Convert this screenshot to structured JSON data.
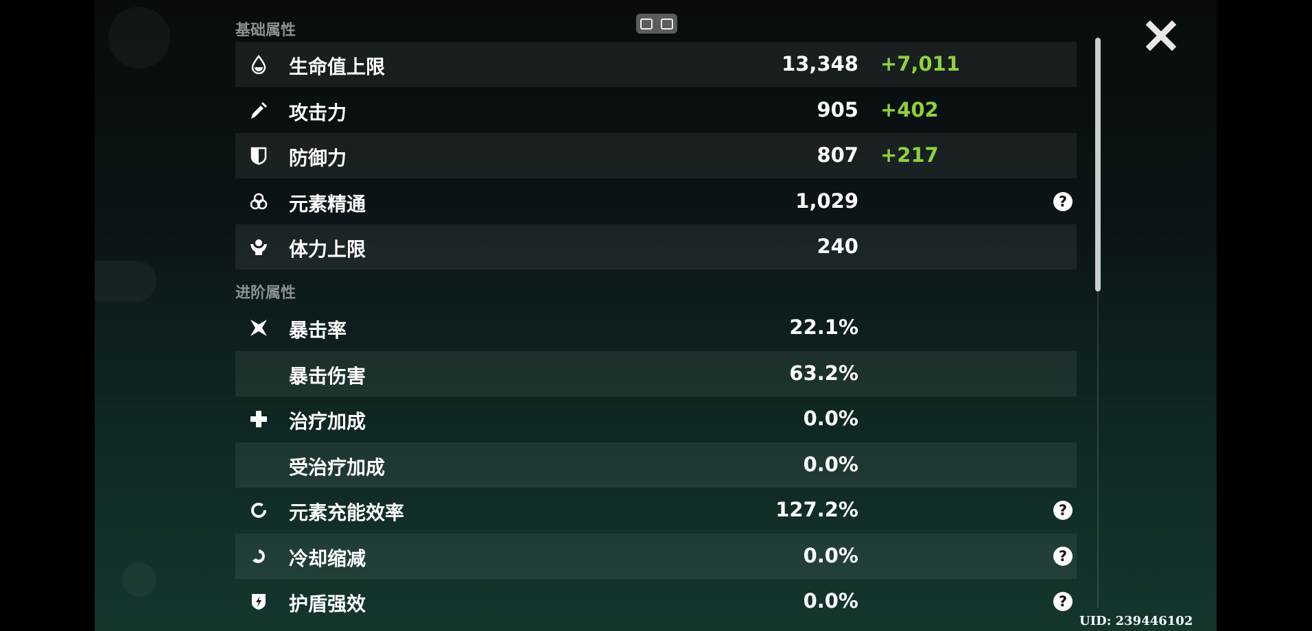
{
  "sections": {
    "basic": "基础属性",
    "advanced": "进阶属性"
  },
  "basic_stats": [
    {
      "icon": "hp-drop-icon",
      "label": "生命值上限",
      "value": "13,348",
      "bonus": "+7,011",
      "help": false
    },
    {
      "icon": "sword-icon",
      "label": "攻击力",
      "value": "905",
      "bonus": "+402",
      "help": false
    },
    {
      "icon": "shield-icon",
      "label": "防御力",
      "value": "807",
      "bonus": "+217",
      "help": false
    },
    {
      "icon": "elemental-mastery-icon",
      "label": "元素精通",
      "value": "1,029",
      "bonus": "",
      "help": true
    },
    {
      "icon": "stamina-icon",
      "label": "体力上限",
      "value": "240",
      "bonus": "",
      "help": false
    }
  ],
  "advanced_stats": [
    {
      "icon": "crit-star-icon",
      "label": "暴击率",
      "value": "22.1%",
      "help": false
    },
    {
      "icon": "",
      "label": "暴击伤害",
      "value": "63.2%",
      "help": false
    },
    {
      "icon": "healing-cross-icon",
      "label": "治疗加成",
      "value": "0.0%",
      "help": false
    },
    {
      "icon": "",
      "label": "受治疗加成",
      "value": "0.0%",
      "help": false
    },
    {
      "icon": "energy-recharge-icon",
      "label": "元素充能效率",
      "value": "127.2%",
      "help": true
    },
    {
      "icon": "cooldown-icon",
      "label": "冷却缩减",
      "value": "0.0%",
      "help": true
    },
    {
      "icon": "shield-strength-icon",
      "label": "护盾强效",
      "value": "0.0%",
      "help": true
    }
  ],
  "help_glyph": "?",
  "uid": "UID: 239446102",
  "colors": {
    "bonus": "#8fd13a",
    "text": "#ffffff",
    "section": "#8a9290"
  }
}
